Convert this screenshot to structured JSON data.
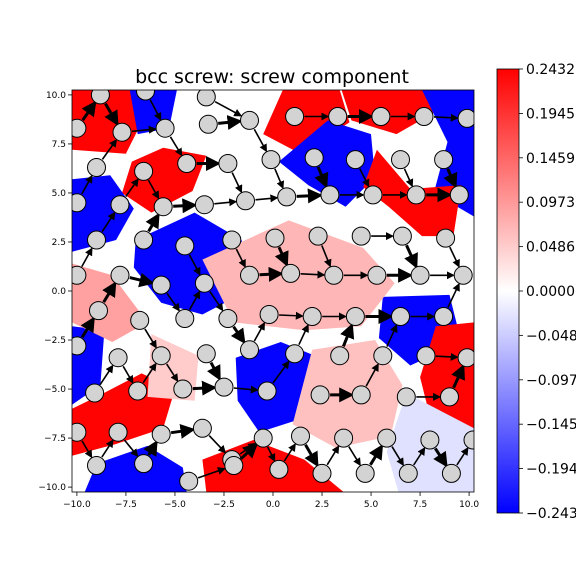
{
  "chart_data": {
    "type": "heatmap",
    "title": "bcc screw: screw component",
    "xlabel": "",
    "ylabel": "",
    "xlim": [
      -10.25,
      10.25
    ],
    "ylim": [
      -10.25,
      10.25
    ],
    "x_ticks": [
      "−10.0",
      "−7.5",
      "−5.0",
      "−2.5",
      "0.0",
      "2.5",
      "5.0",
      "7.5",
      "10.0"
    ],
    "y_ticks": [
      "10.0",
      "7.5",
      "5.0",
      "2.5",
      "0.0",
      "−2.5",
      "−5.0",
      "−7.5",
      "−10.0"
    ],
    "x_tick_values": [
      -10,
      -7.5,
      -5,
      -2.5,
      0,
      2.5,
      5,
      7.5,
      10
    ],
    "y_tick_values": [
      10,
      7.5,
      5,
      2.5,
      0,
      -2.5,
      -5,
      -7.5,
      -10
    ],
    "colorbar": {
      "colormap": "bwr",
      "range": [
        -0.2432,
        0.2432
      ],
      "tick_labels": [
        "0.2432",
        "0.1945",
        "0.1459",
        "0.0973",
        "0.0486",
        "0.0000",
        "−0.0486",
        "−0.0973",
        "−0.1459",
        "−0.1945",
        "−0.2432"
      ],
      "tick_values": [
        0.2432,
        0.1945,
        0.1459,
        0.0973,
        0.0486,
        0.0,
        -0.0486,
        -0.0973,
        -0.1459,
        -0.1945,
        -0.2432
      ]
    },
    "regions": [
      {
        "poly": [
          [
            -10.25,
            10.25
          ],
          [
            -6.3,
            10.25
          ],
          [
            -6.7,
            8.6
          ],
          [
            -7.5,
            7.0
          ],
          [
            -10.25,
            7.2
          ]
        ],
        "value": 0.24
      },
      {
        "poly": [
          [
            -7.3,
            10.25
          ],
          [
            -4.9,
            10.25
          ],
          [
            -5.3,
            8.3
          ],
          [
            -6.9,
            8.0
          ]
        ],
        "value": -0.24
      },
      {
        "poly": [
          [
            -5.6,
            7.3
          ],
          [
            -3.4,
            6.9
          ],
          [
            -4.1,
            5.1
          ],
          [
            -6.2,
            4.0
          ],
          [
            -7.7,
            5.0
          ],
          [
            -7.2,
            6.6
          ]
        ],
        "value": 0.24
      },
      {
        "poly": [
          [
            -10.25,
            5.7
          ],
          [
            -8.3,
            5.9
          ],
          [
            -7.1,
            4.2
          ],
          [
            -8.0,
            2.6
          ],
          [
            -10.25,
            2.0
          ]
        ],
        "value": -0.24
      },
      {
        "poly": [
          [
            -7.0,
            2.6
          ],
          [
            -4.0,
            4.0
          ],
          [
            -1.6,
            2.6
          ],
          [
            -1.3,
            0.0
          ],
          [
            -3.6,
            -1.2
          ],
          [
            -5.7,
            -0.6
          ],
          [
            -7.1,
            1.2
          ]
        ],
        "value": -0.24
      },
      {
        "poly": [
          [
            0.5,
            10.25
          ],
          [
            3.4,
            10.25
          ],
          [
            3.9,
            8.6
          ],
          [
            1.4,
            7.0
          ],
          [
            -0.5,
            8.0
          ]
        ],
        "value": 0.24
      },
      {
        "poly": [
          [
            3.5,
            10.25
          ],
          [
            8.0,
            10.25
          ],
          [
            8.4,
            9.2
          ],
          [
            6.3,
            8.0
          ],
          [
            4.0,
            8.7
          ]
        ],
        "value": 0.24
      },
      {
        "poly": [
          [
            0.3,
            6.6
          ],
          [
            2.8,
            8.7
          ],
          [
            5.0,
            8.0
          ],
          [
            5.2,
            5.8
          ],
          [
            3.7,
            4.3
          ],
          [
            1.8,
            5.4
          ]
        ],
        "value": -0.24
      },
      {
        "poly": [
          [
            7.6,
            10.25
          ],
          [
            10.25,
            10.25
          ],
          [
            10.25,
            3.8
          ],
          [
            8.2,
            5.0
          ],
          [
            8.9,
            7.6
          ]
        ],
        "value": -0.24
      },
      {
        "poly": [
          [
            5.3,
            7.2
          ],
          [
            7.0,
            5.2
          ],
          [
            9.6,
            5.4
          ],
          [
            9.2,
            2.8
          ],
          [
            7.6,
            2.8
          ],
          [
            5.9,
            4.3
          ],
          [
            4.6,
            5.3
          ]
        ],
        "value": 0.24
      },
      {
        "poly": [
          [
            5.6,
            -0.3
          ],
          [
            9.0,
            -0.2
          ],
          [
            9.6,
            -2.6
          ],
          [
            7.0,
            -3.8
          ],
          [
            5.4,
            -2.4
          ]
        ],
        "value": -0.24
      },
      {
        "poly": [
          [
            8.3,
            -1.8
          ],
          [
            10.25,
            -1.6
          ],
          [
            10.25,
            -7.0
          ],
          [
            8.0,
            -6.4
          ],
          [
            7.5,
            -4.4
          ]
        ],
        "value": 0.24
      },
      {
        "poly": [
          [
            -10.25,
            -1.8
          ],
          [
            -8.6,
            -2.0
          ],
          [
            -8.8,
            -4.8
          ],
          [
            -10.25,
            -5.8
          ]
        ],
        "value": -0.24
      },
      {
        "poly": [
          [
            -1.9,
            -3.4
          ],
          [
            0.4,
            -2.6
          ],
          [
            2.4,
            -3.4
          ],
          [
            1.8,
            -6.4
          ],
          [
            -0.7,
            -7.2
          ],
          [
            -1.8,
            -5.6
          ]
        ],
        "value": -0.24
      },
      {
        "poly": [
          [
            -10.25,
            -6.0
          ],
          [
            -9.0,
            -5.4
          ],
          [
            -6.7,
            -4.2
          ],
          [
            -5.0,
            -5.0
          ],
          [
            -5.6,
            -7.0
          ],
          [
            -8.0,
            -7.8
          ],
          [
            -10.25,
            -8.4
          ]
        ],
        "value": 0.24
      },
      {
        "poly": [
          [
            -9.0,
            -8.8
          ],
          [
            -6.4,
            -7.9
          ],
          [
            -4.6,
            -9.0
          ],
          [
            -4.4,
            -10.25
          ],
          [
            -9.6,
            -10.25
          ]
        ],
        "value": -0.24
      },
      {
        "poly": [
          [
            -3.6,
            -8.6
          ],
          [
            -1.0,
            -7.6
          ],
          [
            1.6,
            -8.6
          ],
          [
            3.6,
            -10.25
          ],
          [
            -3.4,
            -10.25
          ]
        ],
        "value": 0.24
      },
      {
        "poly": [
          [
            -3.6,
            1.6
          ],
          [
            0.8,
            3.6
          ],
          [
            4.6,
            2.2
          ],
          [
            6.2,
            0.4
          ],
          [
            4.5,
            -1.8
          ],
          [
            1.6,
            -2.0
          ],
          [
            -2.0,
            -1.6
          ]
        ],
        "value": 0.07
      },
      {
        "poly": [
          [
            2.0,
            -3.0
          ],
          [
            5.2,
            -2.5
          ],
          [
            6.6,
            -4.8
          ],
          [
            6.0,
            -7.4
          ],
          [
            3.2,
            -8.0
          ],
          [
            1.0,
            -6.8
          ]
        ],
        "value": 0.06
      },
      {
        "poly": [
          [
            -6.2,
            -2.2
          ],
          [
            -3.8,
            -3.3
          ],
          [
            -4.0,
            -5.6
          ],
          [
            -6.4,
            -5.4
          ]
        ],
        "value": 0.05
      },
      {
        "poly": [
          [
            6.8,
            -5.2
          ],
          [
            10.25,
            -7.0
          ],
          [
            10.25,
            -10.25
          ],
          [
            6.4,
            -10.25
          ],
          [
            5.8,
            -8.2
          ]
        ],
        "value": -0.03
      },
      {
        "poly": [
          [
            -10.25,
            1.4
          ],
          [
            -8.2,
            0.8
          ],
          [
            -6.4,
            -1.6
          ],
          [
            -8.2,
            -2.6
          ],
          [
            -10.25,
            -1.6
          ]
        ],
        "value": 0.09
      }
    ],
    "atoms": [
      [
        -8.8,
        10.0
      ],
      [
        -6.5,
        10.2
      ],
      [
        -3.4,
        9.9
      ],
      [
        -10.0,
        8.3
      ],
      [
        -7.7,
        8.1
      ],
      [
        -5.5,
        8.3
      ],
      [
        -3.3,
        8.5
      ],
      [
        -1.2,
        8.7
      ],
      [
        1.1,
        8.9
      ],
      [
        3.3,
        8.9
      ],
      [
        5.5,
        8.9
      ],
      [
        7.7,
        8.9
      ],
      [
        9.9,
        8.8
      ],
      [
        -9.0,
        6.3
      ],
      [
        -6.6,
        6.1
      ],
      [
        -4.4,
        6.5
      ],
      [
        -2.3,
        6.5
      ],
      [
        -0.1,
        6.7
      ],
      [
        2.1,
        6.8
      ],
      [
        4.2,
        6.7
      ],
      [
        6.5,
        6.7
      ],
      [
        8.7,
        6.7
      ],
      [
        -10.0,
        4.5
      ],
      [
        -7.8,
        4.4
      ],
      [
        -5.6,
        4.3
      ],
      [
        -3.5,
        4.4
      ],
      [
        -1.4,
        4.6
      ],
      [
        0.7,
        4.8
      ],
      [
        2.9,
        4.9
      ],
      [
        5.1,
        4.9
      ],
      [
        7.3,
        4.9
      ],
      [
        9.5,
        4.9
      ],
      [
        -9.0,
        2.6
      ],
      [
        -6.6,
        2.6
      ],
      [
        -4.5,
        2.3
      ],
      [
        -2.1,
        2.6
      ],
      [
        0.1,
        2.7
      ],
      [
        2.3,
        2.8
      ],
      [
        4.5,
        2.8
      ],
      [
        6.6,
        2.8
      ],
      [
        8.8,
        2.7
      ],
      [
        -10.0,
        0.8
      ],
      [
        -7.8,
        0.8
      ],
      [
        -5.7,
        0.3
      ],
      [
        -3.5,
        0.4
      ],
      [
        -1.2,
        0.8
      ],
      [
        0.9,
        0.9
      ],
      [
        3.1,
        0.8
      ],
      [
        5.3,
        0.8
      ],
      [
        7.5,
        0.8
      ],
      [
        9.7,
        0.8
      ],
      [
        -8.9,
        -1.0
      ],
      [
        -6.8,
        -1.5
      ],
      [
        -4.5,
        -1.4
      ],
      [
        -2.3,
        -1.4
      ],
      [
        -0.2,
        -1.2
      ],
      [
        2.0,
        -1.3
      ],
      [
        4.2,
        -1.3
      ],
      [
        6.5,
        -1.3
      ],
      [
        8.7,
        -1.3
      ],
      [
        -10.0,
        -2.8
      ],
      [
        -7.9,
        -3.4
      ],
      [
        -5.7,
        -3.3
      ],
      [
        -3.4,
        -3.2
      ],
      [
        -1.2,
        -3.0
      ],
      [
        1.1,
        -3.2
      ],
      [
        3.4,
        -3.3
      ],
      [
        5.6,
        -3.3
      ],
      [
        7.8,
        -3.3
      ],
      [
        9.9,
        -3.4
      ],
      [
        -9.1,
        -5.2
      ],
      [
        -6.9,
        -5.1
      ],
      [
        -4.6,
        -5.0
      ],
      [
        -2.5,
        -4.9
      ],
      [
        -0.3,
        -5.1
      ],
      [
        2.4,
        -5.3
      ],
      [
        4.5,
        -5.3
      ],
      [
        6.8,
        -5.4
      ],
      [
        9.0,
        -5.4
      ],
      [
        -10.0,
        -7.2
      ],
      [
        -7.9,
        -7.2
      ],
      [
        -5.7,
        -7.3
      ],
      [
        -3.6,
        -7.0
      ],
      [
        -0.5,
        -7.5
      ],
      [
        1.4,
        -7.4
      ],
      [
        3.6,
        -7.5
      ],
      [
        5.8,
        -7.5
      ],
      [
        8.0,
        -7.6
      ],
      [
        10.2,
        -7.6
      ],
      [
        -9.0,
        -8.9
      ],
      [
        -6.6,
        -8.8
      ],
      [
        -4.3,
        -9.7
      ],
      [
        -2.1,
        -8.6
      ],
      [
        -2.0,
        -8.9
      ],
      [
        0.3,
        -9.1
      ],
      [
        2.5,
        -9.3
      ],
      [
        4.7,
        -9.3
      ],
      [
        6.9,
        -9.3
      ],
      [
        9.1,
        -9.3
      ]
    ]
  }
}
